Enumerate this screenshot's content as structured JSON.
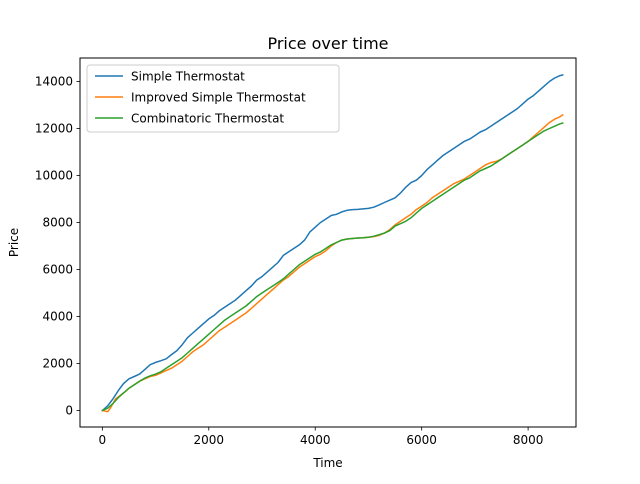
{
  "chart_data": {
    "type": "line",
    "title": "Price over time",
    "xlabel": "Time",
    "ylabel": "Price",
    "xlim": [
      -420,
      8900
    ],
    "ylim": [
      -700,
      15000
    ],
    "xticks": [
      0,
      2000,
      4000,
      6000,
      8000
    ],
    "yticks": [
      0,
      2000,
      4000,
      6000,
      8000,
      10000,
      12000,
      14000
    ],
    "grid": false,
    "legend_position": "upper-left",
    "series": [
      {
        "name": "Simple Thermostat",
        "color": "#1f77b4",
        "points": [
          [
            0,
            0
          ],
          [
            100,
            200
          ],
          [
            200,
            500
          ],
          [
            300,
            850
          ],
          [
            400,
            1150
          ],
          [
            500,
            1350
          ],
          [
            600,
            1450
          ],
          [
            700,
            1550
          ],
          [
            800,
            1750
          ],
          [
            900,
            1950
          ],
          [
            1000,
            2050
          ],
          [
            1100,
            2120
          ],
          [
            1200,
            2200
          ],
          [
            1300,
            2380
          ],
          [
            1400,
            2550
          ],
          [
            1500,
            2800
          ],
          [
            1600,
            3100
          ],
          [
            1700,
            3300
          ],
          [
            1800,
            3500
          ],
          [
            1900,
            3700
          ],
          [
            2000,
            3900
          ],
          [
            2100,
            4050
          ],
          [
            2200,
            4250
          ],
          [
            2300,
            4400
          ],
          [
            2400,
            4550
          ],
          [
            2500,
            4700
          ],
          [
            2600,
            4900
          ],
          [
            2700,
            5100
          ],
          [
            2800,
            5300
          ],
          [
            2900,
            5550
          ],
          [
            3000,
            5700
          ],
          [
            3100,
            5900
          ],
          [
            3200,
            6100
          ],
          [
            3300,
            6300
          ],
          [
            3400,
            6600
          ],
          [
            3500,
            6750
          ],
          [
            3600,
            6900
          ],
          [
            3700,
            7050
          ],
          [
            3800,
            7250
          ],
          [
            3900,
            7600
          ],
          [
            4000,
            7800
          ],
          [
            4100,
            8000
          ],
          [
            4200,
            8150
          ],
          [
            4300,
            8300
          ],
          [
            4400,
            8350
          ],
          [
            4500,
            8450
          ],
          [
            4600,
            8520
          ],
          [
            4700,
            8550
          ],
          [
            4800,
            8560
          ],
          [
            4900,
            8580
          ],
          [
            5000,
            8600
          ],
          [
            5100,
            8650
          ],
          [
            5200,
            8750
          ],
          [
            5300,
            8850
          ],
          [
            5400,
            8950
          ],
          [
            5500,
            9050
          ],
          [
            5600,
            9250
          ],
          [
            5700,
            9500
          ],
          [
            5800,
            9700
          ],
          [
            5900,
            9800
          ],
          [
            6000,
            10000
          ],
          [
            6100,
            10250
          ],
          [
            6200,
            10450
          ],
          [
            6300,
            10650
          ],
          [
            6400,
            10850
          ],
          [
            6500,
            11000
          ],
          [
            6600,
            11150
          ],
          [
            6700,
            11300
          ],
          [
            6800,
            11450
          ],
          [
            6900,
            11550
          ],
          [
            7000,
            11700
          ],
          [
            7100,
            11850
          ],
          [
            7200,
            11950
          ],
          [
            7300,
            12100
          ],
          [
            7400,
            12250
          ],
          [
            7500,
            12400
          ],
          [
            7600,
            12550
          ],
          [
            7700,
            12700
          ],
          [
            7800,
            12850
          ],
          [
            7900,
            13050
          ],
          [
            8000,
            13250
          ],
          [
            8100,
            13400
          ],
          [
            8200,
            13600
          ],
          [
            8300,
            13800
          ],
          [
            8400,
            14000
          ],
          [
            8500,
            14150
          ],
          [
            8600,
            14250
          ],
          [
            8650,
            14280
          ]
        ]
      },
      {
        "name": "Improved Simple Thermostat",
        "color": "#ff7f0e",
        "points": [
          [
            0,
            0
          ],
          [
            100,
            -50
          ],
          [
            150,
            100
          ],
          [
            250,
            500
          ],
          [
            400,
            750
          ],
          [
            500,
            950
          ],
          [
            600,
            1100
          ],
          [
            700,
            1250
          ],
          [
            800,
            1350
          ],
          [
            900,
            1450
          ],
          [
            1000,
            1500
          ],
          [
            1100,
            1600
          ],
          [
            1200,
            1700
          ],
          [
            1300,
            1800
          ],
          [
            1400,
            1950
          ],
          [
            1500,
            2100
          ],
          [
            1600,
            2300
          ],
          [
            1700,
            2500
          ],
          [
            1800,
            2650
          ],
          [
            1900,
            2800
          ],
          [
            2000,
            3000
          ],
          [
            2100,
            3200
          ],
          [
            2200,
            3400
          ],
          [
            2300,
            3550
          ],
          [
            2400,
            3700
          ],
          [
            2500,
            3850
          ],
          [
            2600,
            4000
          ],
          [
            2700,
            4150
          ],
          [
            2800,
            4350
          ],
          [
            2900,
            4550
          ],
          [
            3000,
            4750
          ],
          [
            3100,
            4950
          ],
          [
            3200,
            5150
          ],
          [
            3300,
            5350
          ],
          [
            3400,
            5550
          ],
          [
            3500,
            5700
          ],
          [
            3600,
            5900
          ],
          [
            3700,
            6100
          ],
          [
            3800,
            6250
          ],
          [
            3900,
            6400
          ],
          [
            4000,
            6550
          ],
          [
            4100,
            6650
          ],
          [
            4200,
            6800
          ],
          [
            4300,
            7000
          ],
          [
            4400,
            7150
          ],
          [
            4500,
            7250
          ],
          [
            4600,
            7300
          ],
          [
            4700,
            7320
          ],
          [
            4800,
            7340
          ],
          [
            4900,
            7350
          ],
          [
            5000,
            7370
          ],
          [
            5100,
            7400
          ],
          [
            5200,
            7450
          ],
          [
            5300,
            7550
          ],
          [
            5400,
            7700
          ],
          [
            5500,
            7900
          ],
          [
            5600,
            8050
          ],
          [
            5700,
            8200
          ],
          [
            5800,
            8350
          ],
          [
            5900,
            8550
          ],
          [
            6000,
            8700
          ],
          [
            6100,
            8850
          ],
          [
            6200,
            9050
          ],
          [
            6300,
            9200
          ],
          [
            6400,
            9350
          ],
          [
            6500,
            9500
          ],
          [
            6600,
            9650
          ],
          [
            6700,
            9750
          ],
          [
            6800,
            9850
          ],
          [
            6900,
            10000
          ],
          [
            7000,
            10150
          ],
          [
            7100,
            10300
          ],
          [
            7200,
            10450
          ],
          [
            7300,
            10550
          ],
          [
            7400,
            10600
          ],
          [
            7500,
            10700
          ],
          [
            7600,
            10850
          ],
          [
            7700,
            11000
          ],
          [
            7800,
            11150
          ],
          [
            7900,
            11300
          ],
          [
            8000,
            11450
          ],
          [
            8100,
            11650
          ],
          [
            8200,
            11850
          ],
          [
            8300,
            12050
          ],
          [
            8400,
            12250
          ],
          [
            8500,
            12400
          ],
          [
            8600,
            12500
          ],
          [
            8650,
            12580
          ]
        ]
      },
      {
        "name": "Combinatoric Thermostat",
        "color": "#2ca02c",
        "points": [
          [
            0,
            0
          ],
          [
            100,
            100
          ],
          [
            200,
            300
          ],
          [
            300,
            550
          ],
          [
            400,
            750
          ],
          [
            500,
            950
          ],
          [
            600,
            1100
          ],
          [
            700,
            1250
          ],
          [
            800,
            1380
          ],
          [
            900,
            1480
          ],
          [
            1000,
            1550
          ],
          [
            1100,
            1650
          ],
          [
            1200,
            1800
          ],
          [
            1300,
            1950
          ],
          [
            1400,
            2100
          ],
          [
            1500,
            2250
          ],
          [
            1600,
            2450
          ],
          [
            1700,
            2650
          ],
          [
            1800,
            2850
          ],
          [
            1900,
            3050
          ],
          [
            2000,
            3250
          ],
          [
            2100,
            3450
          ],
          [
            2200,
            3650
          ],
          [
            2300,
            3850
          ],
          [
            2400,
            4000
          ],
          [
            2500,
            4150
          ],
          [
            2600,
            4300
          ],
          [
            2700,
            4450
          ],
          [
            2800,
            4650
          ],
          [
            2900,
            4850
          ],
          [
            3000,
            5000
          ],
          [
            3100,
            5150
          ],
          [
            3200,
            5300
          ],
          [
            3300,
            5450
          ],
          [
            3400,
            5600
          ],
          [
            3500,
            5800
          ],
          [
            3600,
            6000
          ],
          [
            3700,
            6200
          ],
          [
            3800,
            6350
          ],
          [
            3900,
            6500
          ],
          [
            4000,
            6650
          ],
          [
            4100,
            6750
          ],
          [
            4200,
            6900
          ],
          [
            4300,
            7050
          ],
          [
            4400,
            7150
          ],
          [
            4500,
            7250
          ],
          [
            4600,
            7300
          ],
          [
            4700,
            7320
          ],
          [
            4800,
            7340
          ],
          [
            4900,
            7350
          ],
          [
            5000,
            7370
          ],
          [
            5100,
            7420
          ],
          [
            5200,
            7480
          ],
          [
            5300,
            7550
          ],
          [
            5400,
            7650
          ],
          [
            5500,
            7850
          ],
          [
            5600,
            7950
          ],
          [
            5700,
            8050
          ],
          [
            5800,
            8200
          ],
          [
            5900,
            8400
          ],
          [
            6000,
            8600
          ],
          [
            6100,
            8750
          ],
          [
            6200,
            8900
          ],
          [
            6300,
            9050
          ],
          [
            6400,
            9200
          ],
          [
            6500,
            9350
          ],
          [
            6600,
            9500
          ],
          [
            6700,
            9650
          ],
          [
            6800,
            9800
          ],
          [
            6900,
            9900
          ],
          [
            7000,
            10050
          ],
          [
            7100,
            10200
          ],
          [
            7200,
            10300
          ],
          [
            7300,
            10400
          ],
          [
            7400,
            10550
          ],
          [
            7500,
            10700
          ],
          [
            7600,
            10850
          ],
          [
            7700,
            11000
          ],
          [
            7800,
            11150
          ],
          [
            7900,
            11300
          ],
          [
            8000,
            11450
          ],
          [
            8100,
            11600
          ],
          [
            8200,
            11750
          ],
          [
            8300,
            11900
          ],
          [
            8400,
            12000
          ],
          [
            8500,
            12100
          ],
          [
            8600,
            12200
          ],
          [
            8650,
            12230
          ]
        ]
      }
    ]
  }
}
